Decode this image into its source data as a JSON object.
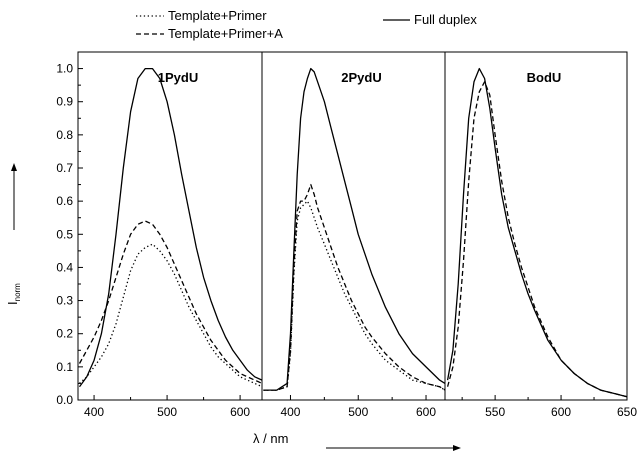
{
  "chart_data": {
    "type": "line",
    "ylabel": "I_norm",
    "ylabel_main": "I",
    "ylabel_sub": "norm",
    "xlabel": "λ / nm",
    "ylim": [
      0,
      1.05
    ],
    "yticks": [
      "0.0",
      "0.1",
      "0.2",
      "0.3",
      "0.4",
      "0.5",
      "0.6",
      "0.7",
      "0.8",
      "0.9",
      "1.0"
    ],
    "legend": [
      {
        "name": "Template+Primer",
        "style": "dotted"
      },
      {
        "name": "Template+Primer+A",
        "style": "dashed"
      },
      {
        "name": "Full duplex",
        "style": "solid"
      }
    ],
    "panels": [
      {
        "title": "1PydU",
        "xlim": [
          378,
          630
        ],
        "xticks": [
          400,
          500,
          600
        ],
        "series": [
          {
            "style": "solid",
            "x": [
              380,
              390,
              400,
              410,
              420,
              430,
              440,
              450,
              460,
              470,
              480,
              490,
              500,
              510,
              520,
              530,
              540,
              550,
              560,
              570,
              580,
              590,
              600,
              610,
              620,
              630
            ],
            "y": [
              0.04,
              0.07,
              0.12,
              0.2,
              0.32,
              0.5,
              0.7,
              0.87,
              0.97,
              1.0,
              1.0,
              0.97,
              0.9,
              0.8,
              0.68,
              0.57,
              0.46,
              0.37,
              0.3,
              0.24,
              0.19,
              0.15,
              0.12,
              0.09,
              0.07,
              0.06
            ]
          },
          {
            "style": "dashed",
            "x": [
              380,
              390,
              400,
              410,
              420,
              430,
              440,
              450,
              460,
              470,
              480,
              490,
              500,
              510,
              520,
              530,
              540,
              550,
              560,
              570,
              580,
              590,
              600,
              610,
              620,
              630
            ],
            "y": [
              0.11,
              0.15,
              0.19,
              0.24,
              0.3,
              0.37,
              0.44,
              0.5,
              0.53,
              0.54,
              0.53,
              0.5,
              0.46,
              0.41,
              0.36,
              0.31,
              0.26,
              0.22,
              0.18,
              0.15,
              0.12,
              0.1,
              0.08,
              0.07,
              0.06,
              0.05
            ]
          },
          {
            "style": "dotted",
            "x": [
              380,
              390,
              400,
              410,
              420,
              430,
              440,
              450,
              460,
              470,
              480,
              490,
              500,
              510,
              520,
              530,
              540,
              550,
              560,
              570,
              580,
              590,
              600,
              610,
              620,
              630
            ],
            "y": [
              0.05,
              0.07,
              0.1,
              0.13,
              0.17,
              0.23,
              0.31,
              0.39,
              0.44,
              0.46,
              0.47,
              0.45,
              0.42,
              0.38,
              0.33,
              0.28,
              0.24,
              0.2,
              0.16,
              0.13,
              0.11,
              0.09,
              0.07,
              0.06,
              0.05,
              0.04
            ]
          }
        ]
      },
      {
        "title": "2PydU",
        "xlim": [
          358,
          628
        ],
        "xticks": [
          400,
          500,
          600
        ],
        "series": [
          {
            "style": "solid",
            "x": [
              360,
              380,
              395,
              400,
              405,
              410,
              415,
              420,
              425,
              430,
              435,
              440,
              450,
              460,
              470,
              480,
              490,
              500,
              510,
              520,
              540,
              560,
              580,
              600,
              620,
              628
            ],
            "y": [
              0.03,
              0.03,
              0.05,
              0.2,
              0.45,
              0.68,
              0.85,
              0.93,
              0.97,
              1.0,
              0.99,
              0.96,
              0.9,
              0.82,
              0.74,
              0.66,
              0.58,
              0.5,
              0.44,
              0.38,
              0.28,
              0.2,
              0.14,
              0.1,
              0.06,
              0.05
            ]
          },
          {
            "style": "dashed",
            "x": [
              360,
              380,
              395,
              400,
              405,
              410,
              415,
              420,
              425,
              430,
              435,
              440,
              450,
              460,
              470,
              480,
              490,
              500,
              510,
              520,
              540,
              560,
              580,
              600,
              620,
              628
            ],
            "y": [
              0.03,
              0.03,
              0.04,
              0.15,
              0.4,
              0.57,
              0.6,
              0.6,
              0.62,
              0.65,
              0.62,
              0.58,
              0.52,
              0.46,
              0.4,
              0.35,
              0.3,
              0.26,
              0.22,
              0.19,
              0.14,
              0.1,
              0.07,
              0.05,
              0.04,
              0.03
            ]
          },
          {
            "style": "dotted",
            "x": [
              360,
              380,
              395,
              400,
              405,
              410,
              415,
              420,
              425,
              430,
              435,
              440,
              450,
              460,
              470,
              480,
              490,
              500,
              510,
              520,
              540,
              560,
              580,
              600,
              620,
              628
            ],
            "y": [
              0.03,
              0.03,
              0.04,
              0.14,
              0.38,
              0.54,
              0.58,
              0.59,
              0.6,
              0.58,
              0.55,
              0.52,
              0.47,
              0.42,
              0.37,
              0.32,
              0.28,
              0.24,
              0.2,
              0.17,
              0.12,
              0.09,
              0.06,
              0.05,
              0.04,
              0.03
            ]
          }
        ]
      },
      {
        "title": "BodU",
        "xlim": [
          512,
          650
        ],
        "xticks": [
          550,
          600,
          650
        ],
        "series": [
          {
            "style": "solid",
            "x": [
              514,
              518,
              522,
              526,
              530,
              534,
              538,
              542,
              546,
              550,
              555,
              560,
              565,
              570,
              575,
              580,
              590,
              600,
              610,
              620,
              630,
              640,
              650
            ],
            "y": [
              0.06,
              0.15,
              0.35,
              0.62,
              0.85,
              0.96,
              1.0,
              0.97,
              0.88,
              0.76,
              0.62,
              0.52,
              0.45,
              0.38,
              0.32,
              0.27,
              0.18,
              0.12,
              0.08,
              0.05,
              0.03,
              0.02,
              0.01
            ]
          },
          {
            "style": "dashed",
            "x": [
              514,
              518,
              522,
              526,
              530,
              534,
              538,
              542,
              546,
              550,
              555,
              560,
              565,
              570,
              575,
              580,
              590,
              600,
              610,
              620,
              630,
              640,
              650
            ],
            "y": [
              0.04,
              0.1,
              0.22,
              0.42,
              0.66,
              0.85,
              0.93,
              0.96,
              0.92,
              0.8,
              0.66,
              0.55,
              0.47,
              0.4,
              0.34,
              0.28,
              0.19,
              0.12,
              0.08,
              0.05,
              0.03,
              0.02,
              0.01
            ]
          }
        ]
      }
    ]
  }
}
